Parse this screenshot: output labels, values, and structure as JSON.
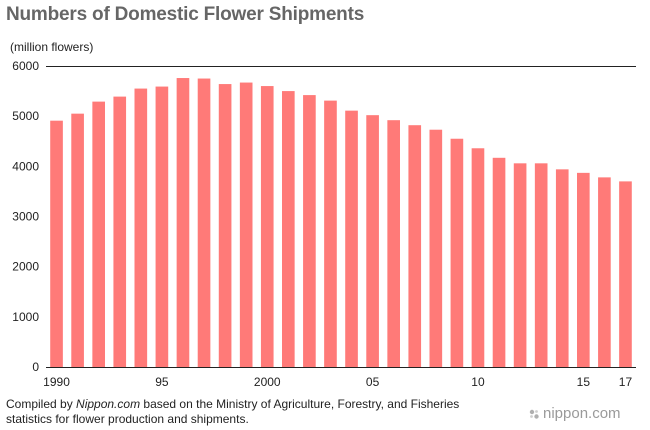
{
  "chart_data": {
    "type": "bar",
    "title": "Numbers of Domestic Flower Shipments",
    "ylabel": "(million flowers)",
    "xlabel": "",
    "ylim": [
      0,
      6000
    ],
    "yticks": [
      "0",
      "1000",
      "2000",
      "3000",
      "4000",
      "5000",
      "6000"
    ],
    "categories": [
      "1990",
      "1991",
      "1992",
      "1993",
      "1994",
      "1995",
      "1996",
      "1997",
      "1998",
      "1999",
      "2000",
      "2001",
      "2002",
      "2003",
      "2004",
      "2005",
      "2006",
      "2007",
      "2008",
      "2009",
      "2010",
      "2011",
      "2012",
      "2013",
      "2014",
      "2015",
      "2016",
      "2017"
    ],
    "xtick_labels": [
      "1990",
      "",
      "",
      "",
      "",
      "95",
      "",
      "",
      "",
      "",
      "2000",
      "",
      "",
      "",
      "",
      "05",
      "",
      "",
      "",
      "",
      "10",
      "",
      "",
      "",
      "",
      "15",
      "",
      "17"
    ],
    "values": [
      4910,
      5050,
      5290,
      5390,
      5550,
      5590,
      5760,
      5750,
      5640,
      5670,
      5600,
      5500,
      5420,
      5310,
      5110,
      5020,
      4920,
      4820,
      4730,
      4550,
      4360,
      4170,
      4060,
      4060,
      3940,
      3870,
      3780,
      3700
    ],
    "bar_color": "#ff7a78",
    "grid": false
  },
  "footnote": {
    "prefix": "Compiled by ",
    "source": "Nippon.com",
    "suffix": " based on the Ministry of Agriculture, Forestry, and Fisheries statistics for flower production and shipments."
  },
  "logo": {
    "text": "nippon.com"
  }
}
